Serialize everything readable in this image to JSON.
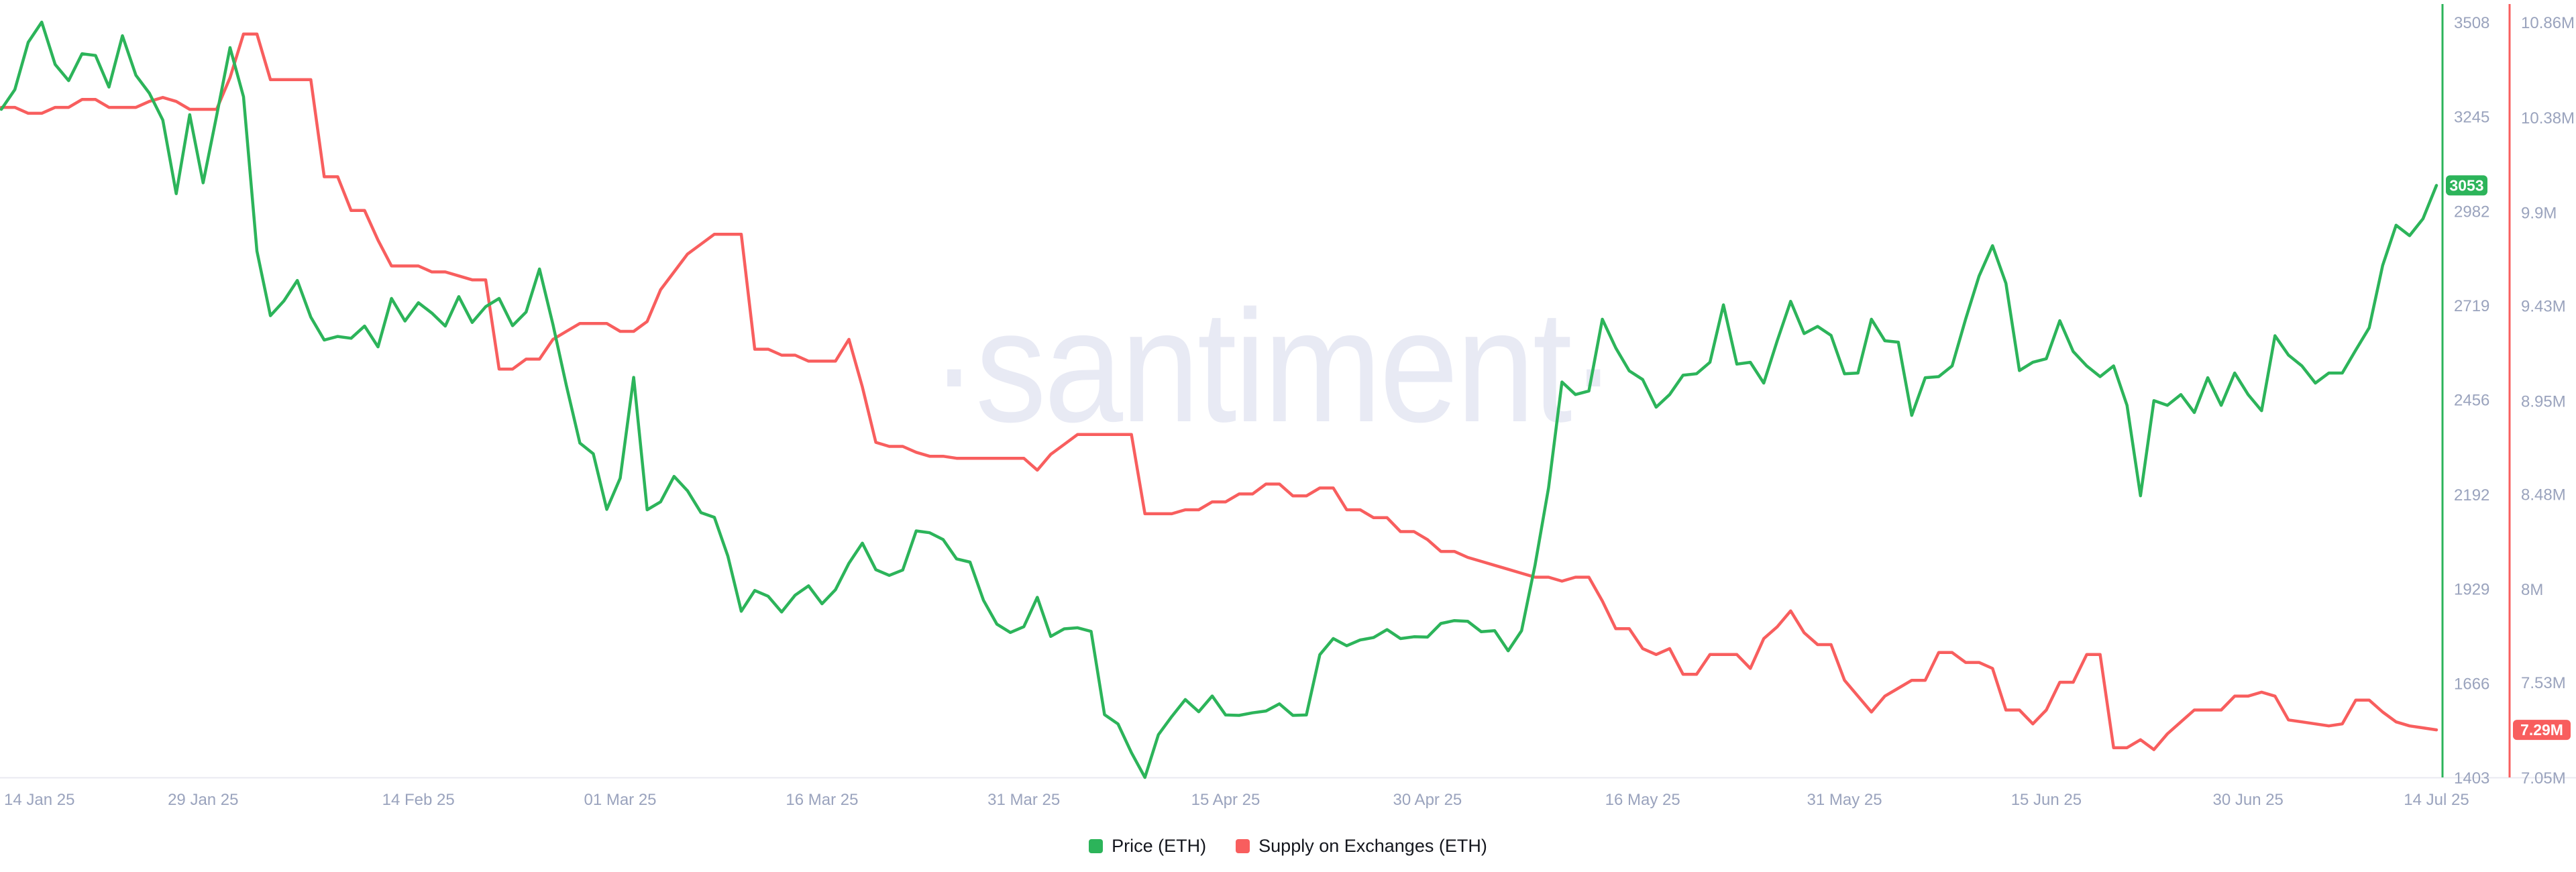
{
  "watermark": "·santiment·",
  "legend": [
    {
      "label": "Price (ETH)",
      "color": "#2cb45a"
    },
    {
      "label": "Supply on Exchanges (ETH)",
      "color": "#f85e5e"
    }
  ],
  "badges": {
    "price_label": "3053",
    "supply_label": "7.29M"
  },
  "colors": {
    "price_green": "#2cb45a",
    "supply_red": "#f85e5e",
    "axis_label_gray": "#9aa3bd",
    "watermark_lavender": "#e8eaf4",
    "background": "#ffffff"
  },
  "chart_data": {
    "type": "line",
    "title": "",
    "xlabel": "",
    "ylabel_left": "",
    "ylabel_right_price": "Price (ETH)",
    "ylabel_right_supply": "Supply on Exchanges (ETH)",
    "grid": "off",
    "legend_position": "bottom-center",
    "x_range_days": 181,
    "x_tick_labels": [
      "14 Jan 25",
      "29 Jan 25",
      "14 Feb 25",
      "01 Mar 25",
      "16 Mar 25",
      "31 Mar 25",
      "15 Apr 25",
      "30 Apr 25",
      "16 May 25",
      "31 May 25",
      "15 Jun 25",
      "30 Jun 25",
      "14 Jul 25"
    ],
    "x_tick_day_index": [
      0,
      15,
      31,
      46,
      61,
      76,
      91,
      106,
      122,
      137,
      152,
      167,
      181
    ],
    "axes": {
      "price": {
        "side": "right-inner",
        "min": 1403,
        "max": 3508,
        "ticks": [
          3508,
          3245,
          2982,
          2719,
          2456,
          2192,
          1929,
          1666,
          1403
        ],
        "labels": [
          "3508",
          "3245",
          "2982",
          "2719",
          "2456",
          "2192",
          "1929",
          "1666",
          "1403"
        ],
        "current": 3053,
        "current_label": "3053"
      },
      "supply": {
        "side": "right-outer",
        "min": 7.05,
        "max": 10.86,
        "ticks": [
          10.86,
          10.38,
          9.9,
          9.43,
          8.95,
          8.48,
          8.0,
          7.53,
          7.05
        ],
        "labels": [
          "10.86M",
          "10.38M",
          "9.9M",
          "9.43M",
          "8.95M",
          "8.48M",
          "8M",
          "7.53M",
          "7.05M"
        ],
        "current": 7.29,
        "current_label": "7.29M"
      }
    },
    "series": [
      {
        "name": "Price (ETH)",
        "axis": "price",
        "color": "#2cb45a",
        "start_date": "14 Jan 25",
        "interval_days": 1,
        "values": [
          3265,
          3320,
          3452,
          3508,
          3390,
          3345,
          3420,
          3415,
          3327,
          3470,
          3360,
          3310,
          3235,
          3030,
          3250,
          3060,
          3247,
          3437,
          3300,
          2870,
          2690,
          2731,
          2788,
          2686,
          2622,
          2632,
          2627,
          2661,
          2603,
          2738,
          2675,
          2726,
          2697,
          2661,
          2743,
          2671,
          2715,
          2738,
          2662,
          2700,
          2820,
          2665,
          2495,
          2335,
          2305,
          2150,
          2237,
          2518,
          2149,
          2171,
          2242,
          2202,
          2141,
          2128,
          2020,
          1866,
          1924,
          1908,
          1864,
          1911,
          1937,
          1887,
          1926,
          2000,
          2056,
          1982,
          1966,
          1981,
          2090,
          2085,
          2066,
          2012,
          2003,
          1897,
          1830,
          1807,
          1823,
          1905,
          1796,
          1817,
          1820,
          1810,
          1578,
          1552,
          1472,
          1403,
          1522,
          1573,
          1620,
          1586,
          1630,
          1577,
          1576,
          1583,
          1588,
          1608,
          1576,
          1577,
          1745,
          1790,
          1770,
          1786,
          1793,
          1815,
          1790,
          1795,
          1794,
          1832,
          1840,
          1838,
          1809,
          1812,
          1756,
          1812,
          1995,
          2210,
          2505,
          2470,
          2480,
          2680,
          2600,
          2536,
          2512,
          2435,
          2470,
          2524,
          2528,
          2560,
          2720,
          2555,
          2560,
          2502,
          2620,
          2730,
          2640,
          2660,
          2635,
          2528,
          2530,
          2680,
          2620,
          2616,
          2412,
          2517,
          2520,
          2550,
          2680,
          2800,
          2885,
          2780,
          2537,
          2560,
          2570,
          2676,
          2590,
          2550,
          2520,
          2550,
          2440,
          2188,
          2453,
          2440,
          2470,
          2420,
          2517,
          2440,
          2530,
          2470,
          2425,
          2634,
          2580,
          2550,
          2502,
          2530,
          2530,
          2594,
          2656,
          2830,
          2942,
          2913,
          2960,
          3053
        ]
      },
      {
        "name": "Supply on Exchanges (ETH)",
        "axis": "supply",
        "color": "#f85e5e",
        "start_date": "14 Jan 25",
        "interval_days": 1,
        "values": [
          10.43,
          10.43,
          10.4,
          10.4,
          10.43,
          10.43,
          10.47,
          10.47,
          10.43,
          10.43,
          10.43,
          10.46,
          10.48,
          10.46,
          10.42,
          10.42,
          10.42,
          10.58,
          10.8,
          10.8,
          10.57,
          10.57,
          10.57,
          10.57,
          10.08,
          10.08,
          9.91,
          9.91,
          9.76,
          9.63,
          9.63,
          9.63,
          9.6,
          9.6,
          9.58,
          9.56,
          9.56,
          9.11,
          9.11,
          9.16,
          9.16,
          9.26,
          9.3,
          9.34,
          9.34,
          9.34,
          9.3,
          9.3,
          9.35,
          9.51,
          9.6,
          9.69,
          9.74,
          9.79,
          9.79,
          9.79,
          9.21,
          9.21,
          9.18,
          9.18,
          9.15,
          9.15,
          9.15,
          9.26,
          9.02,
          8.74,
          8.72,
          8.72,
          8.69,
          8.67,
          8.67,
          8.66,
          8.66,
          8.66,
          8.66,
          8.66,
          8.66,
          8.6,
          8.68,
          8.73,
          8.78,
          8.78,
          8.78,
          8.78,
          8.78,
          8.38,
          8.38,
          8.38,
          8.4,
          8.4,
          8.44,
          8.44,
          8.48,
          8.48,
          8.53,
          8.53,
          8.47,
          8.47,
          8.51,
          8.51,
          8.4,
          8.4,
          8.36,
          8.36,
          8.29,
          8.29,
          8.25,
          8.19,
          8.19,
          8.16,
          8.14,
          8.12,
          8.1,
          8.08,
          8.06,
          8.06,
          8.04,
          8.06,
          8.06,
          7.94,
          7.8,
          7.8,
          7.7,
          7.67,
          7.7,
          7.57,
          7.57,
          7.67,
          7.67,
          7.67,
          7.6,
          7.75,
          7.81,
          7.89,
          7.78,
          7.72,
          7.72,
          7.54,
          7.46,
          7.38,
          7.46,
          7.5,
          7.54,
          7.54,
          7.68,
          7.68,
          7.63,
          7.63,
          7.6,
          7.39,
          7.39,
          7.32,
          7.39,
          7.53,
          7.53,
          7.67,
          7.67,
          7.2,
          7.2,
          7.24,
          7.19,
          7.27,
          7.33,
          7.39,
          7.39,
          7.39,
          7.46,
          7.46,
          7.48,
          7.46,
          7.34,
          7.33,
          7.32,
          7.31,
          7.32,
          7.44,
          7.44,
          7.38,
          7.33,
          7.31,
          7.3,
          7.29
        ]
      }
    ]
  }
}
